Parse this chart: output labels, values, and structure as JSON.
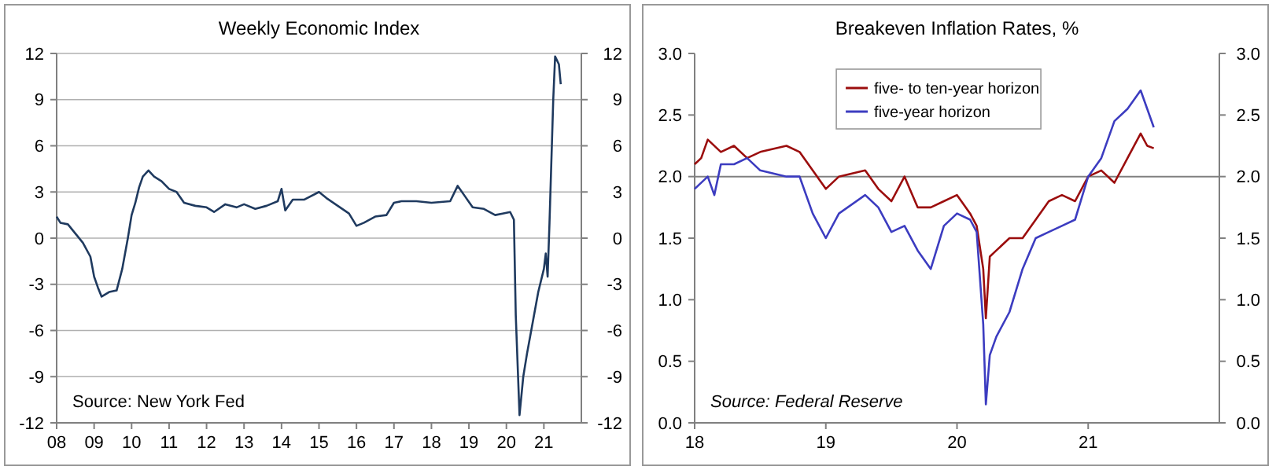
{
  "chart_data": [
    {
      "type": "line",
      "title": "Weekly Economic Index",
      "annotations": [
        "Source: New York Fed"
      ],
      "x": [
        2008.0,
        2008.1,
        2008.3,
        2008.5,
        2008.7,
        2008.9,
        2009.0,
        2009.1,
        2009.2,
        2009.4,
        2009.6,
        2009.75,
        2009.9,
        2010.0,
        2010.1,
        2010.2,
        2010.3,
        2010.45,
        2010.6,
        2010.8,
        2011.0,
        2011.2,
        2011.4,
        2011.7,
        2012.0,
        2012.2,
        2012.5,
        2012.8,
        2013.0,
        2013.3,
        2013.6,
        2013.9,
        2014.0,
        2014.1,
        2014.3,
        2014.6,
        2015.0,
        2015.2,
        2015.5,
        2015.8,
        2016.0,
        2016.2,
        2016.5,
        2016.8,
        2017.0,
        2017.2,
        2017.6,
        2018.0,
        2018.5,
        2018.7,
        2018.9,
        2019.1,
        2019.4,
        2019.7,
        2019.9,
        2020.1,
        2020.2,
        2020.25,
        2020.35,
        2020.45,
        2020.55,
        2020.7,
        2020.85,
        2021.0,
        2021.05,
        2021.1,
        2021.15,
        2021.25,
        2021.3,
        2021.4,
        2021.45
      ],
      "series": [
        {
          "color": "#1f3a5f",
          "values": [
            1.4,
            1.0,
            0.9,
            0.3,
            -0.3,
            -1.2,
            -2.5,
            -3.2,
            -3.8,
            -3.5,
            -3.4,
            -2.0,
            0.0,
            1.5,
            2.3,
            3.3,
            4.0,
            4.4,
            4.0,
            3.7,
            3.2,
            3.0,
            2.3,
            2.1,
            2.0,
            1.7,
            2.2,
            2.0,
            2.2,
            1.9,
            2.1,
            2.4,
            3.2,
            1.8,
            2.5,
            2.5,
            3.0,
            2.6,
            2.1,
            1.6,
            0.8,
            1.0,
            1.4,
            1.5,
            2.3,
            2.4,
            2.4,
            2.3,
            2.4,
            3.4,
            2.7,
            2.0,
            1.9,
            1.5,
            1.6,
            1.7,
            1.2,
            -5.0,
            -11.5,
            -9.0,
            -7.5,
            -5.5,
            -3.5,
            -2.0,
            -1.0,
            -2.5,
            1.0,
            9.0,
            11.8,
            11.3,
            10.0
          ]
        }
      ],
      "xlim": [
        2008,
        2022
      ],
      "xticks": [
        {
          "value": 2008,
          "label": "08"
        },
        {
          "value": 2009,
          "label": "09"
        },
        {
          "value": 2010,
          "label": "10"
        },
        {
          "value": 2011,
          "label": "11"
        },
        {
          "value": 2012,
          "label": "12"
        },
        {
          "value": 2013,
          "label": "13"
        },
        {
          "value": 2014,
          "label": "14"
        },
        {
          "value": 2015,
          "label": "15"
        },
        {
          "value": 2016,
          "label": "16"
        },
        {
          "value": 2017,
          "label": "17"
        },
        {
          "value": 2018,
          "label": "18"
        },
        {
          "value": 2019,
          "label": "19"
        },
        {
          "value": 2020,
          "label": "20"
        },
        {
          "value": 2021,
          "label": "21"
        }
      ],
      "ylim": [
        -12,
        12
      ],
      "yticks": [
        -12,
        -9,
        -6,
        -3,
        0,
        3,
        6,
        9,
        12
      ],
      "y2lim": [
        -12,
        12
      ],
      "y2ticks": [
        -12,
        -9,
        -6,
        -3,
        0,
        3,
        6,
        9,
        12
      ],
      "grid": "y",
      "legend": false,
      "line_style": "solid",
      "marker": "none"
    },
    {
      "type": "line",
      "title": "Breakeven Inflation Rates, %",
      "annotations": [
        "Source: Federal Reserve"
      ],
      "series": [
        {
          "name": "five- to ten-year horizon",
          "color": "#9b0d0d",
          "x": [
            2018.0,
            2018.05,
            2018.1,
            2018.2,
            2018.3,
            2018.4,
            2018.5,
            2018.7,
            2018.8,
            2018.9,
            2019.0,
            2019.1,
            2019.3,
            2019.4,
            2019.5,
            2019.6,
            2019.7,
            2019.8,
            2019.9,
            2020.0,
            2020.1,
            2020.15,
            2020.2,
            2020.22,
            2020.25,
            2020.3,
            2020.4,
            2020.5,
            2020.6,
            2020.7,
            2020.8,
            2020.9,
            2021.0,
            2021.1,
            2021.2,
            2021.3,
            2021.4,
            2021.45,
            2021.5
          ],
          "values": [
            2.1,
            2.15,
            2.3,
            2.2,
            2.25,
            2.15,
            2.2,
            2.25,
            2.2,
            2.05,
            1.9,
            2.0,
            2.05,
            1.9,
            1.8,
            2.0,
            1.75,
            1.75,
            1.8,
            1.85,
            1.7,
            1.6,
            1.25,
            0.85,
            1.35,
            1.4,
            1.5,
            1.5,
            1.65,
            1.8,
            1.85,
            1.8,
            2.0,
            2.05,
            1.95,
            2.15,
            2.35,
            2.25,
            2.23
          ]
        },
        {
          "name": "five-year horizon",
          "color": "#3c3cc0",
          "x": [
            2018.0,
            2018.1,
            2018.15,
            2018.2,
            2018.3,
            2018.4,
            2018.5,
            2018.7,
            2018.8,
            2018.9,
            2019.0,
            2019.1,
            2019.3,
            2019.4,
            2019.5,
            2019.6,
            2019.7,
            2019.8,
            2019.9,
            2020.0,
            2020.1,
            2020.15,
            2020.2,
            2020.22,
            2020.25,
            2020.3,
            2020.4,
            2020.5,
            2020.6,
            2020.7,
            2020.8,
            2020.9,
            2021.0,
            2021.1,
            2021.2,
            2021.3,
            2021.4,
            2021.45,
            2021.5
          ],
          "values": [
            1.9,
            2.0,
            1.85,
            2.1,
            2.1,
            2.15,
            2.05,
            2.0,
            2.0,
            1.7,
            1.5,
            1.7,
            1.85,
            1.75,
            1.55,
            1.6,
            1.4,
            1.25,
            1.6,
            1.7,
            1.65,
            1.55,
            0.8,
            0.15,
            0.55,
            0.7,
            0.9,
            1.25,
            1.5,
            1.55,
            1.6,
            1.65,
            2.0,
            2.15,
            2.45,
            2.55,
            2.7,
            2.55,
            2.4
          ]
        }
      ],
      "xlim": [
        2018,
        2022
      ],
      "xticks": [
        {
          "value": 2018,
          "label": "18"
        },
        {
          "value": 2019,
          "label": "19"
        },
        {
          "value": 2020,
          "label": "20"
        },
        {
          "value": 2021,
          "label": "21"
        }
      ],
      "ylim": [
        0,
        3
      ],
      "yticks": [
        {
          "value": 0,
          "label": "0.0"
        },
        {
          "value": 0.5,
          "label": "0.5"
        },
        {
          "value": 1,
          "label": "1.0"
        },
        {
          "value": 1.5,
          "label": "1.5"
        },
        {
          "value": 2,
          "label": "2.0"
        },
        {
          "value": 2.5,
          "label": "2.5"
        },
        {
          "value": 3,
          "label": "3.0"
        }
      ],
      "y2lim": [
        0,
        3
      ],
      "y2ticks": [
        {
          "value": 0,
          "label": "0.0"
        },
        {
          "value": 0.5,
          "label": "0.5"
        },
        {
          "value": 1,
          "label": "1.0"
        },
        {
          "value": 1.5,
          "label": "1.5"
        },
        {
          "value": 2,
          "label": "2.0"
        },
        {
          "value": 2.5,
          "label": "2.5"
        },
        {
          "value": 3,
          "label": "3.0"
        }
      ],
      "ref_lines": [
        {
          "axis": "y",
          "value": 2,
          "color": "#808080"
        }
      ],
      "grid": false,
      "legend": "top",
      "line_style": "solid",
      "marker": "none"
    }
  ]
}
